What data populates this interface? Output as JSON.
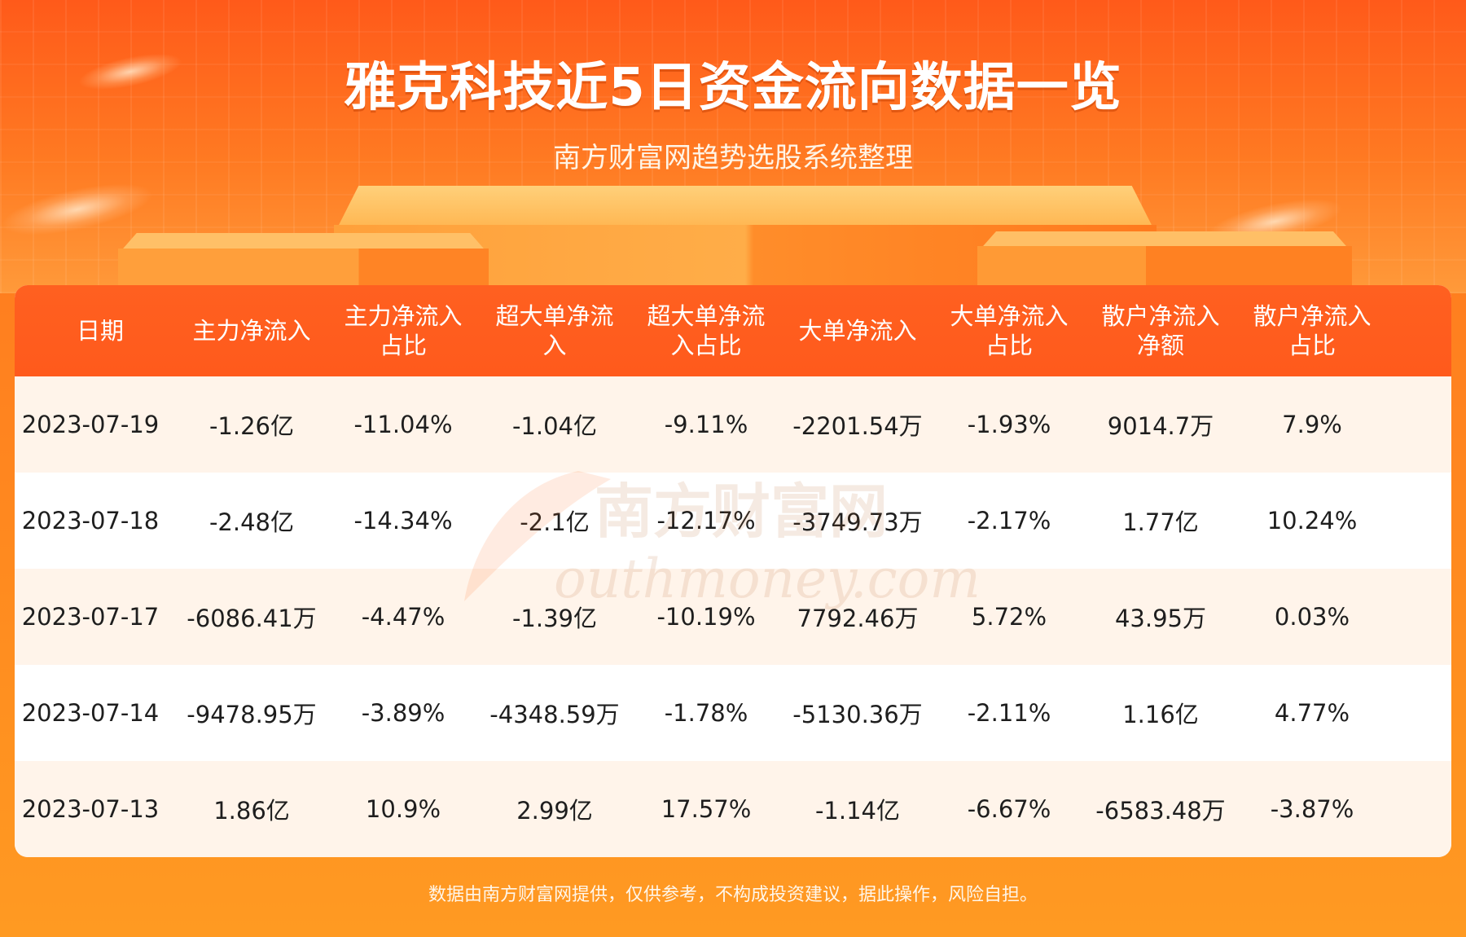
{
  "header": {
    "title": "雅克科技近5日资金流向数据一览",
    "subtitle": "南方财富网趋势选股系统整理"
  },
  "table": {
    "columns": [
      "日期",
      "主力净流入",
      "主力净流入\n占比",
      "超大单净流\n入",
      "超大单净流\n入占比",
      "大单净流入",
      "大单净流入\n占比",
      "散户净流入\n净额",
      "散户净流入\n占比"
    ],
    "rows": [
      [
        "2023-07-19",
        "-1.26亿",
        "-11.04%",
        "-1.04亿",
        "-9.11%",
        "-2201.54万",
        "-1.93%",
        "9014.7万",
        "7.9%"
      ],
      [
        "2023-07-18",
        "-2.48亿",
        "-14.34%",
        "-2.1亿",
        "-12.17%",
        "-3749.73万",
        "-2.17%",
        "1.77亿",
        "10.24%"
      ],
      [
        "2023-07-17",
        "-6086.41万",
        "-4.47%",
        "-1.39亿",
        "-10.19%",
        "7792.46万",
        "5.72%",
        "43.95万",
        "0.03%"
      ],
      [
        "2023-07-14",
        "-9478.95万",
        "-3.89%",
        "-4348.59万",
        "-1.78%",
        "-5130.36万",
        "-2.11%",
        "1.16亿",
        "4.77%"
      ],
      [
        "2023-07-13",
        "1.86亿",
        "10.9%",
        "2.99亿",
        "17.57%",
        "-1.14亿",
        "-6.67%",
        "-6583.48万",
        "-3.87%"
      ]
    ]
  },
  "watermark": {
    "cn": "南方财富网",
    "en": "outhmoney.com"
  },
  "footer": {
    "disclaimer": "数据由南方财富网提供，仅供参考，不构成投资建议，据此操作，风险自担。"
  },
  "colors": {
    "header_orange": "#ff5a1c",
    "row_tint": "#fff4ea",
    "background": "#ff8a1f"
  }
}
